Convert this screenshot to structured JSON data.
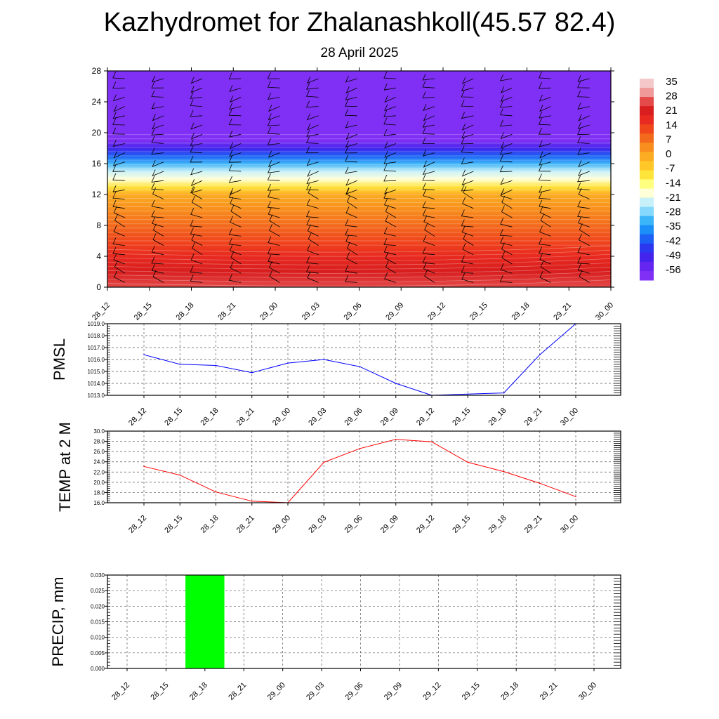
{
  "title": "Kazhydromet for Zhalanashkoll(45.57 82.4)",
  "subtitle": "28 April 2025",
  "chart_data": [
    {
      "type": "heatmap",
      "xlabel": "",
      "ylabel": "",
      "x_ticks": [
        "28_12",
        "28_15",
        "28_18",
        "28_21",
        "29_00",
        "29_03",
        "29_06",
        "29_09",
        "29_12",
        "29_15",
        "29_18",
        "29_21",
        "30_00"
      ],
      "y_ticks": [
        "0",
        "4",
        "8",
        "12",
        "16",
        "20",
        "24",
        "28"
      ],
      "ylim": [
        0,
        28
      ],
      "colorbar_labels": [
        "35",
        "28",
        "21",
        "14",
        "7",
        "0",
        "-7",
        "-14",
        "-21",
        "-28",
        "-35",
        "-42",
        "-49",
        "-56"
      ],
      "colorbar_colors": [
        "#f4c8c8",
        "#f09a9a",
        "#e44a4a",
        "#d81e1e",
        "#e82a20",
        "#f0461c",
        "#f46a1c",
        "#f88e1e",
        "#fcac22",
        "#ffc828",
        "#ffe43c",
        "#ffff80",
        "#ffffd8",
        "#c8f0f8",
        "#86d8fc",
        "#3cb4f8",
        "#1c8ef8",
        "#1c60f4",
        "#2c38f0",
        "#4424ec",
        "#6426f0",
        "#8030f4"
      ],
      "temperature_profile": {
        "heights": [
          0,
          2,
          4,
          6,
          8,
          10,
          12,
          13,
          14,
          15,
          16,
          17,
          18,
          19,
          20,
          28
        ],
        "values": [
          27,
          24,
          20,
          15,
          10,
          5,
          -2,
          -10,
          -16,
          -24,
          -32,
          -40,
          -50,
          -58,
          -60,
          -60
        ]
      },
      "wind_barbs": "wind barbs at every grid point"
    },
    {
      "type": "line",
      "ylabel": "PMSL",
      "categories": [
        "28_12",
        "28_15",
        "28_18",
        "28_21",
        "29_00",
        "29_03",
        "29_06",
        "29_09",
        "29_12",
        "29_15",
        "29_18",
        "29_21",
        "30_00"
      ],
      "values": [
        1016.4,
        1015.6,
        1015.5,
        1014.9,
        1015.7,
        1016.0,
        1015.4,
        1014.0,
        1013.0,
        1013.1,
        1013.2,
        1016.4,
        1019.0
      ],
      "y_ticks": [
        "1013.0",
        "1014.0",
        "1015.0",
        "1016.0",
        "1017.0",
        "1018.0",
        "1019.0"
      ],
      "ylim": [
        1013.0,
        1019.0
      ],
      "color": "#0000ff",
      "grid": true
    },
    {
      "type": "line",
      "ylabel": "TEMP at 2 M",
      "categories": [
        "28_12",
        "28_15",
        "28_18",
        "28_21",
        "29_00",
        "29_03",
        "29_06",
        "29_09",
        "29_12",
        "29_15",
        "29_18",
        "29_21",
        "30_00"
      ],
      "values": [
        23.1,
        21.4,
        18.1,
        16.3,
        16.0,
        23.9,
        26.6,
        28.4,
        27.9,
        23.9,
        22.1,
        19.8,
        17.2
      ],
      "y_ticks": [
        "16.0",
        "18.0",
        "20.0",
        "22.0",
        "24.0",
        "26.0",
        "28.0",
        "30.0"
      ],
      "ylim": [
        16.0,
        30.0
      ],
      "color": "#ff0000",
      "grid": true
    },
    {
      "type": "bar",
      "ylabel": "PRECIP, mm",
      "categories": [
        "28_12",
        "28_15",
        "28_18",
        "28_21",
        "29_00",
        "29_03",
        "29_06",
        "29_09",
        "29_12",
        "29_15",
        "29_18",
        "29_21",
        "30_00"
      ],
      "values": [
        0,
        0,
        0.03,
        0,
        0,
        0,
        0,
        0,
        0,
        0,
        0,
        0,
        0
      ],
      "y_ticks": [
        "0.000",
        "0.005",
        "0.010",
        "0.015",
        "0.020",
        "0.025",
        "0.030"
      ],
      "ylim": [
        0,
        0.03
      ],
      "color": "#00ff00",
      "grid": true
    }
  ]
}
